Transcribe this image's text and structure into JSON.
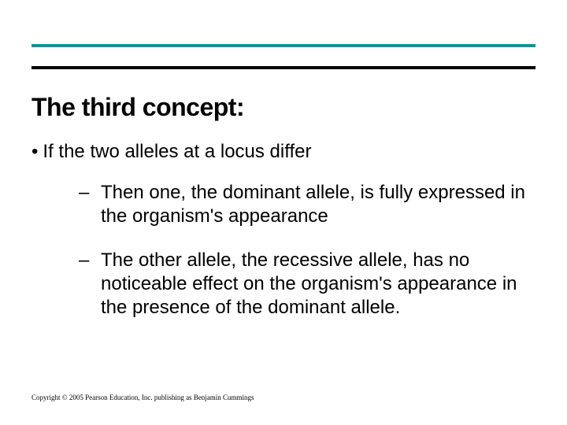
{
  "accent_color": "#009999",
  "title": "The third concept:",
  "bullet": {
    "text": "If the two alleles at a locus differ"
  },
  "subpoints": [
    "Then one, the dominant allele, is fully expressed in the organism's appearance",
    "The other allele, the recessive allele, has no noticeable effect on the organism's appearance in the presence of the dominant allele."
  ],
  "copyright": "Copyright © 2005 Pearson Education, Inc. publishing as Benjamin Cummings"
}
